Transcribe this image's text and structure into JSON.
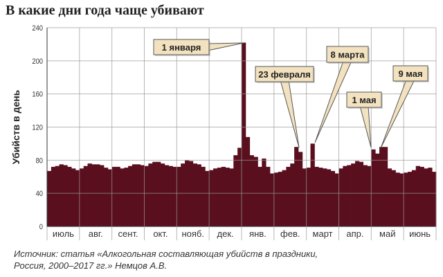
{
  "chart_data": {
    "type": "bar",
    "title": "В какие дни года чаще убивают",
    "ylabel": "Убийств в день",
    "xlabel": "",
    "ylim": [
      0,
      240
    ],
    "yticks": [
      0,
      40,
      80,
      120,
      160,
      200,
      240
    ],
    "grid": true,
    "bar_color": "#5a0f1e",
    "categories": [
      "июль",
      "авг.",
      "сент.",
      "окт.",
      "нояб.",
      "дек.",
      "янв.",
      "фев.",
      "март",
      "апр.",
      "май",
      "июнь"
    ],
    "values_per_month": [
      [
        67,
        72,
        73,
        75,
        74,
        72,
        70,
        68
      ],
      [
        70,
        73,
        76,
        75,
        75,
        74,
        71,
        69
      ],
      [
        72,
        72,
        70,
        71,
        73,
        75,
        75,
        74
      ],
      [
        73,
        76,
        78,
        78,
        76,
        74,
        73,
        72
      ],
      [
        72,
        76,
        80,
        79,
        76,
        75,
        72,
        67
      ],
      [
        68,
        70,
        71,
        72,
        71,
        70,
        86,
        95
      ],
      [
        222,
        108,
        86,
        84,
        72,
        82,
        72,
        64
      ],
      [
        65,
        66,
        68,
        72,
        76,
        96,
        90,
        70
      ],
      [
        71,
        100,
        72,
        71,
        70,
        69,
        67,
        64
      ],
      [
        70,
        73,
        74,
        76,
        79,
        78,
        74,
        73
      ],
      [
        93,
        88,
        96,
        96,
        70,
        68,
        65,
        64
      ],
      [
        65,
        66,
        68,
        73,
        72,
        70,
        71,
        66
      ]
    ],
    "annotations": [
      {
        "label": "1 января",
        "value": 222
      },
      {
        "label": "23 февраля",
        "value": 96
      },
      {
        "label": "8 марта",
        "value": 100
      },
      {
        "label": "1 мая",
        "value": 93
      },
      {
        "label": "9 мая",
        "value": 96
      }
    ],
    "annotation_color": "#f3e2c0"
  },
  "source": {
    "line1": "Источник: статья «Алкогольная составляющая убийств в праздники,",
    "line2": "Россия, 2000–2017 гг.» Немцов А.В."
  }
}
